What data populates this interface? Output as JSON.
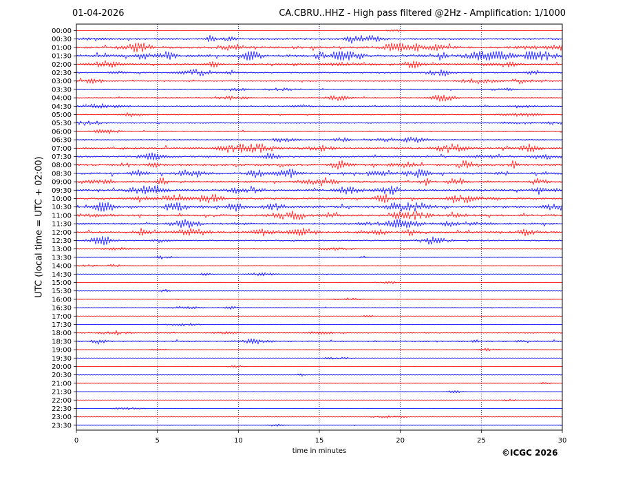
{
  "header": {
    "date": "01-04-2026",
    "title": "CA.CBRU..HHZ - High pass filtered @2Hz - Amplification: 1/1000"
  },
  "footer": {
    "copyright": "©ICGC 2026"
  },
  "colors": {
    "red_trace": "#ff0000",
    "blue_trace": "#0000ff",
    "grid": "#000080",
    "axis": "#000000"
  },
  "chart_data": {
    "type": "line",
    "xlabel": "time in minutes",
    "ylabel": "UTC (local time = UTC + 02:00)",
    "xlim": [
      0,
      30
    ],
    "x_ticks": [
      0,
      5,
      10,
      15,
      20,
      25,
      30
    ],
    "grid": "vertical dotted lines at 5-minute ticks",
    "trace_colors_alternate": [
      "red",
      "blue"
    ],
    "rows": [
      "00:00",
      "00:30",
      "01:00",
      "01:30",
      "02:00",
      "02:30",
      "03:00",
      "03:30",
      "04:00",
      "04:30",
      "05:00",
      "05:30",
      "06:00",
      "06:30",
      "07:00",
      "07:30",
      "08:00",
      "08:30",
      "09:00",
      "09:30",
      "10:00",
      "10:30",
      "11:00",
      "11:30",
      "12:00",
      "12:30",
      "13:00",
      "13:30",
      "14:00",
      "14:30",
      "15:00",
      "15:30",
      "16:00",
      "16:30",
      "17:00",
      "17:30",
      "18:00",
      "18:30",
      "19:00",
      "19:30",
      "20:00",
      "20:30",
      "21:00",
      "21:30",
      "22:00",
      "22:30",
      "23:00",
      "23:30"
    ],
    "activity": [
      0.2,
      1.6,
      2.2,
      2.6,
      1.6,
      1.2,
      1.0,
      0.9,
      1.0,
      0.9,
      0.8,
      0.8,
      0.8,
      1.2,
      1.8,
      1.6,
      2.0,
      2.2,
      1.8,
      2.0,
      2.0,
      2.2,
      2.0,
      1.8,
      2.0,
      1.2,
      0.4,
      0.4,
      0.4,
      0.4,
      0.3,
      0.3,
      0.3,
      0.5,
      0.3,
      0.3,
      0.8,
      1.2,
      0.4,
      0.2,
      0.2,
      0.2,
      0.2,
      0.2,
      0.2,
      0.2,
      0.2,
      0.2
    ]
  }
}
